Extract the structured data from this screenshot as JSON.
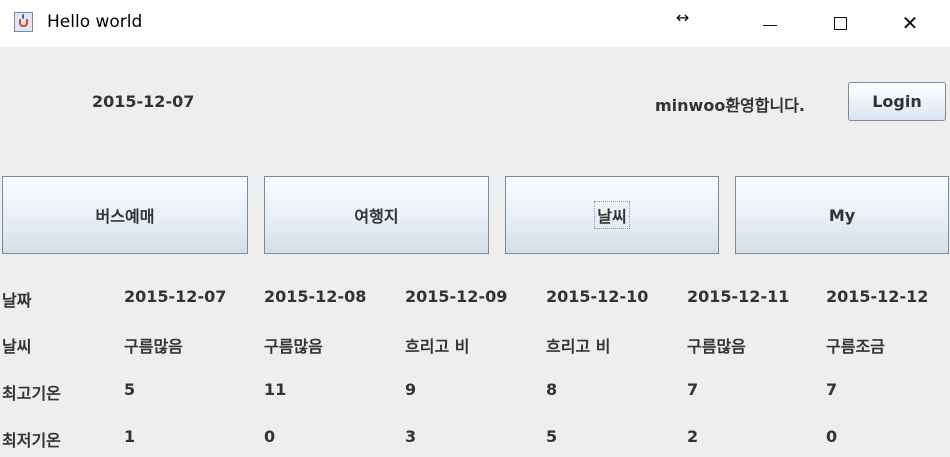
{
  "window": {
    "title": "Hello world",
    "resize_glyph": "↔",
    "controls": [
      "minimize-icon",
      "maximize-icon",
      "close-icon"
    ]
  },
  "header": {
    "date": "2015-12-07",
    "welcome": "minwoo환영합니다.",
    "login_label": "Login"
  },
  "nav": {
    "bus": "버스예매",
    "travel": "여행지",
    "weather": "날씨",
    "my": "My"
  },
  "forecast": {
    "row_labels": [
      "날짜",
      "날씨",
      "최고기온",
      "최저기온"
    ],
    "dates": [
      "2015-12-07",
      "2015-12-08",
      "2015-12-09",
      "2015-12-10",
      "2015-12-11",
      "2015-12-12"
    ],
    "weather": [
      "구름많음",
      "구름많음",
      "흐리고 비",
      "흐리고 비",
      "구름많음",
      "구름조금"
    ],
    "high": [
      "5",
      "11",
      "9",
      "8",
      "7",
      "7"
    ],
    "low": [
      "1",
      "0",
      "3",
      "5",
      "2",
      "0"
    ]
  }
}
